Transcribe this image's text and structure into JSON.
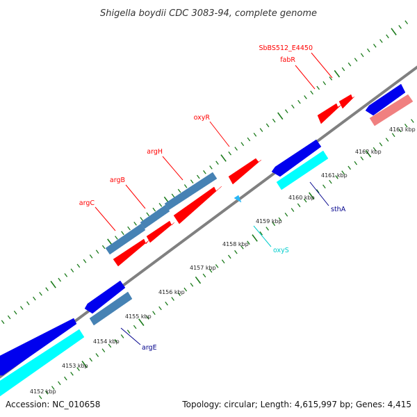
{
  "title": "Shigella boydii CDC 3083-94, complete genome",
  "accession": "Accession: NC_010658",
  "topology": "Topology: circular; Length: 4,615,997 bp; Genes: 4,415",
  "colors": {
    "red": "#ff0000",
    "blue": "#0000ee",
    "cyan": "#00ffff",
    "steelblue": "#4682b4",
    "pink": "#f08080",
    "darkblue": "#00008b",
    "backbone": "#808080",
    "ticks": "#1a7a1a"
  },
  "kbp_labels": [
    "4152 kbp",
    "4153 kbp",
    "4154 kbp",
    "4155 kbp",
    "4156 kbp",
    "4157 kbp",
    "4158 kbp",
    "4159 kbp",
    "4160 kbp",
    "4161 kbp",
    "4162 kbp",
    "4163 kbp"
  ],
  "gene_labels": {
    "argC": "argC",
    "argB": "argB",
    "argH": "argH",
    "oxyR": "oxyR",
    "fabR": "fabR",
    "sb4450": "SbBS512_E4450",
    "argE": "argE",
    "oxyS": "oxyS",
    "sthA": "sthA"
  }
}
